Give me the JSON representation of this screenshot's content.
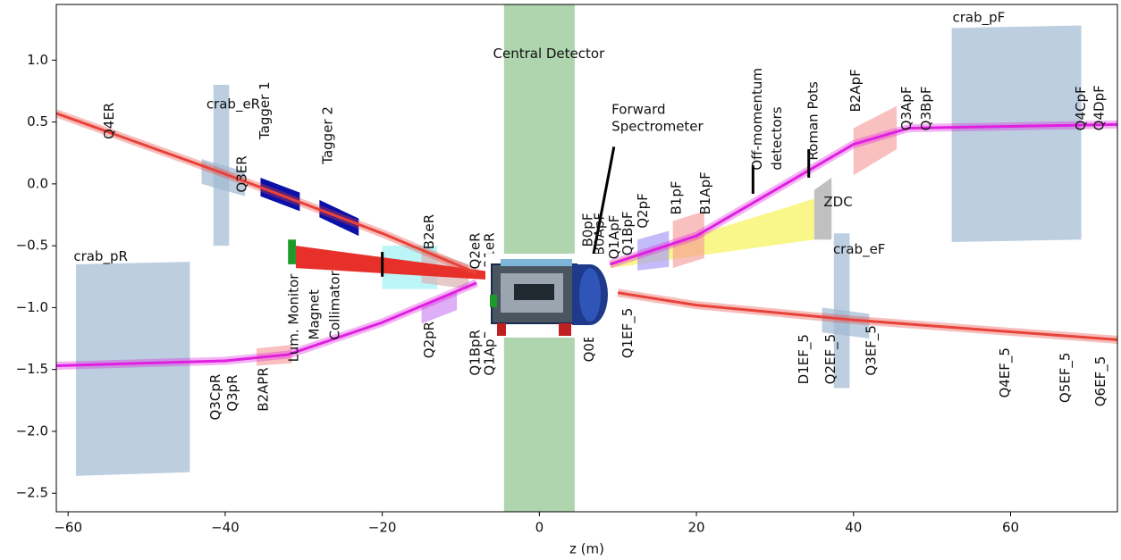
{
  "chart_data": {
    "type": "layout",
    "x_label": "z (m)",
    "xlim": [
      -61.5,
      73.6
    ],
    "ylim": [
      -2.65,
      1.45
    ],
    "xticks": [
      {
        "value": -60,
        "label": "−60"
      },
      {
        "value": -40,
        "label": "−40"
      },
      {
        "value": -20,
        "label": "−20"
      },
      0,
      20,
      40,
      60
    ],
    "yticks": [
      {
        "value": 1,
        "label": "1.0"
      },
      0.5,
      {
        "value": 0,
        "label": "0.0"
      },
      {
        "value": -0.5,
        "label": "−0.5"
      },
      {
        "value": -1,
        "label": "−1.0"
      },
      {
        "value": -1.5,
        "label": "−1.5"
      },
      {
        "value": -2,
        "label": "−2.0"
      },
      {
        "value": -2.5,
        "label": "−2.5"
      }
    ],
    "shapes": [
      {
        "color": "rgba(120,185,120,0.6)",
        "x": [
          -4.5,
          4.5,
          4.5,
          -4.5
        ],
        "y": [
          1.45,
          1.45,
          -2.65,
          -2.65
        ]
      },
      {
        "color": "rgba(160,185,210,0.7)",
        "x": [
          -59,
          -44.5,
          -44.5,
          -59
        ],
        "y": [
          -0.65,
          -0.63,
          -2.33,
          -2.36
        ]
      },
      {
        "color": "rgba(160,185,210,0.7)",
        "x": [
          52.5,
          69,
          69,
          52.5
        ],
        "y": [
          1.26,
          1.28,
          -0.45,
          -0.47
        ]
      },
      {
        "color": "rgba(160,185,210,0.7)",
        "x": [
          -41.5,
          -39.5,
          -39.5,
          -41.5
        ],
        "y": [
          0.8,
          0.8,
          -0.5,
          -0.5
        ]
      },
      {
        "color": "rgba(160,185,210,0.7)",
        "x": [
          -43,
          -37.5,
          -37.5,
          -43
        ],
        "y": [
          0.2,
          0.1,
          -0.1,
          0
        ]
      },
      {
        "color": "rgba(160,185,210,0.7)",
        "x": [
          37.5,
          39.5,
          39.5,
          37.5
        ],
        "y": [
          -0.4,
          -0.4,
          -1.65,
          -1.65
        ]
      },
      {
        "color": "rgba(160,185,210,0.7)",
        "x": [
          36,
          42,
          42,
          36
        ],
        "y": [
          -1.0,
          -1.05,
          -1.25,
          -1.2
        ]
      },
      {
        "color": "rgba(150,150,150,0.6)",
        "x": [
          35,
          37.2,
          37.2,
          35
        ],
        "y": [
          -0.05,
          0.05,
          -0.45,
          -0.45
        ]
      },
      {
        "color": "rgba(245,240,60,0.6)",
        "x": [
          9,
          35,
          35,
          9
        ],
        "y": [
          -0.63,
          -0.12,
          -0.45,
          -0.68
        ]
      },
      {
        "color": "rgba(120,235,240,0.5)",
        "x": [
          -20,
          -13,
          -13,
          -20
        ],
        "y": [
          -0.5,
          -0.5,
          -0.85,
          -0.85
        ]
      },
      {
        "color": "rgba(220,180,180,0.7)",
        "x": [
          -15,
          -9,
          -9,
          -15
        ],
        "y": [
          -0.52,
          -0.65,
          -0.85,
          -0.8
        ]
      },
      {
        "color": "#0a10a8",
        "x": [
          -35.5,
          -30.5,
          -30.5,
          -35.5
        ],
        "y": [
          0.05,
          -0.07,
          -0.22,
          -0.1
        ]
      },
      {
        "color": "#0a10a8",
        "x": [
          -28,
          -23,
          -23,
          -28
        ],
        "y": [
          -0.13,
          -0.28,
          -0.42,
          -0.27
        ]
      },
      {
        "color": "#1e9a2a",
        "x": [
          -32,
          -31,
          -31,
          -32
        ],
        "y": [
          -0.45,
          -0.45,
          -0.65,
          -0.65
        ]
      },
      {
        "color": "#e8302a",
        "x": [
          -31,
          -5,
          -5,
          -31
        ],
        "y": [
          -0.5,
          -0.72,
          -0.78,
          -0.68
        ]
      },
      {
        "color": "rgba(245,150,150,0.6)",
        "x": [
          40,
          45.5,
          45.5,
          40
        ],
        "y": [
          0.45,
          0.63,
          0.28,
          0.07
        ]
      },
      {
        "color": "rgba(245,150,150,0.6)",
        "x": [
          17,
          21,
          21,
          17
        ],
        "y": [
          -0.3,
          -0.22,
          -0.6,
          -0.68
        ]
      },
      {
        "color": "rgba(170,160,245,0.7)",
        "x": [
          12.5,
          16.5,
          16.5,
          12.5
        ],
        "y": [
          -0.45,
          -0.38,
          -0.67,
          -0.7
        ]
      },
      {
        "color": "rgba(200,120,240,0.6)",
        "x": [
          -15,
          -10.5,
          -10.5,
          -15
        ],
        "y": [
          -1.0,
          -0.87,
          -1.02,
          -1.13
        ]
      },
      {
        "color": "rgba(245,150,150,0.6)",
        "x": [
          -36,
          -31.5,
          -31.5,
          -36
        ],
        "y": [
          -1.33,
          -1.3,
          -1.45,
          -1.47
        ]
      }
    ],
    "lines": [
      {
        "color": "#e8433a",
        "x": [
          -61.5,
          -40,
          -20,
          -8
        ],
        "y": [
          0.57,
          0.08,
          -0.4,
          -0.72
        ]
      },
      {
        "color": "#e8433a",
        "x": [
          10,
          20,
          40,
          73.6
        ],
        "y": [
          -0.88,
          -0.98,
          -1.1,
          -1.26
        ]
      },
      {
        "color": "#e020e0",
        "x": [
          -61.5,
          -40,
          -32,
          -20,
          -8
        ],
        "y": [
          -1.47,
          -1.43,
          -1.38,
          -1.12,
          -0.8
        ]
      },
      {
        "color": "#e020e0",
        "x": [
          9,
          20,
          40,
          47,
          73.6
        ],
        "y": [
          -0.65,
          -0.42,
          0.32,
          0.45,
          0.48
        ]
      },
      {
        "color": "#000000",
        "x": [
          6.5,
          9.5
        ],
        "y": [
          -0.7,
          0.3
        ]
      },
      {
        "color": "#000000",
        "x": [
          27.2,
          27.2
        ],
        "y": [
          0.15,
          -0.08
        ]
      },
      {
        "color": "#000000",
        "x": [
          34.3,
          34.3
        ],
        "y": [
          0.28,
          0.05
        ]
      },
      {
        "color": "#000000",
        "x": [
          -20,
          -20
        ],
        "y": [
          -0.55,
          -0.75
        ]
      }
    ],
    "annotations": [
      {
        "text": "Central Detector",
        "x": 1.2,
        "y": 1.05,
        "rotation": 0,
        "anchor": "middle"
      },
      {
        "text": "Forward",
        "x": 9.2,
        "y": 0.6,
        "rotation": 0,
        "anchor": "start"
      },
      {
        "text": "Spectrometer",
        "x": 9.2,
        "y": 0.46,
        "rotation": 0,
        "anchor": "start"
      },
      {
        "text": "ZDC",
        "x": 36.2,
        "y": -0.15,
        "rotation": 0,
        "anchor": "start"
      },
      {
        "text": "crab_eR",
        "x": -42.4,
        "y": 0.64,
        "rotation": 0,
        "anchor": "start"
      },
      {
        "text": "crab_pR",
        "x": -59.3,
        "y": -0.59,
        "rotation": 0,
        "anchor": "start"
      },
      {
        "text": "crab_pF",
        "x": 52.6,
        "y": 1.34,
        "rotation": 0,
        "anchor": "start"
      },
      {
        "text": "crab_eF",
        "x": 37.4,
        "y": -0.53,
        "rotation": 0,
        "anchor": "start"
      },
      {
        "text": "Q4ER",
        "x": -54.7,
        "y": 0.36,
        "rotation": 90,
        "anchor": "start"
      },
      {
        "text": "Q3ER",
        "x": -37.8,
        "y": -0.07,
        "rotation": 90,
        "anchor": "start"
      },
      {
        "text": "Tagger 1",
        "x": -34.9,
        "y": 0.36,
        "rotation": 90,
        "anchor": "start"
      },
      {
        "text": "Tagger 2",
        "x": -26.9,
        "y": 0.16,
        "rotation": 90,
        "anchor": "start"
      },
      {
        "text": "B2eR",
        "x": -14.0,
        "y": -0.53,
        "rotation": 90,
        "anchor": "start"
      },
      {
        "text": "Q2eR",
        "x": -8.1,
        "y": -0.69,
        "rotation": 90,
        "anchor": "start"
      },
      {
        "text": "Q1eR",
        "x": -6.3,
        "y": -0.69,
        "rotation": 90,
        "anchor": "start"
      },
      {
        "text": "Lum. Monitor",
        "x": -31.2,
        "y": -1.44,
        "rotation": 90,
        "anchor": "start"
      },
      {
        "text": "Magnet",
        "x": -28.6,
        "y": -1.26,
        "rotation": 90,
        "anchor": "start"
      },
      {
        "text": "Collimator",
        "x": -26,
        "y": -1.26,
        "rotation": 90,
        "anchor": "start"
      },
      {
        "text": "Q2pR",
        "x": -14,
        "y": -1.41,
        "rotation": 90,
        "anchor": "start"
      },
      {
        "text": "Q1BpR",
        "x": -8.1,
        "y": -1.55,
        "rotation": 90,
        "anchor": "start"
      },
      {
        "text": "Q1ApR",
        "x": -6.3,
        "y": -1.55,
        "rotation": 90,
        "anchor": "start"
      },
      {
        "text": "Q3CpR",
        "x": -41.2,
        "y": -1.91,
        "rotation": 90,
        "anchor": "start"
      },
      {
        "text": "Q3pR",
        "x": -39,
        "y": -1.84,
        "rotation": 90,
        "anchor": "start"
      },
      {
        "text": "B2APR",
        "x": -35.1,
        "y": -1.84,
        "rotation": 90,
        "anchor": "start"
      },
      {
        "text": "Q0EF",
        "x": 6.4,
        "y": -1.44,
        "rotation": 90,
        "anchor": "start"
      },
      {
        "text": "B0pF",
        "x": 6.2,
        "y": -0.51,
        "rotation": 90,
        "anchor": "start"
      },
      {
        "text": "B0ApF",
        "x": 7.7,
        "y": -0.58,
        "rotation": 90,
        "anchor": "start"
      },
      {
        "text": "Q1ApF",
        "x": 9.6,
        "y": -0.61,
        "rotation": 90,
        "anchor": "start"
      },
      {
        "text": "Q1BpF",
        "x": 11.3,
        "y": -0.58,
        "rotation": 90,
        "anchor": "start"
      },
      {
        "text": "Q2pF",
        "x": 13.2,
        "y": -0.36,
        "rotation": 90,
        "anchor": "start"
      },
      {
        "text": "B1pF",
        "x": 17.5,
        "y": -0.25,
        "rotation": 90,
        "anchor": "start"
      },
      {
        "text": "B1ApF",
        "x": 21.2,
        "y": -0.25,
        "rotation": 90,
        "anchor": "start"
      },
      {
        "text": "Off-momentum",
        "x": 27.8,
        "y": 0.11,
        "rotation": 90,
        "anchor": "start"
      },
      {
        "text": "detectors",
        "x": 30.3,
        "y": 0.11,
        "rotation": 90,
        "anchor": "start"
      },
      {
        "text": "Roman Pots",
        "x": 34.9,
        "y": 0.19,
        "rotation": 90,
        "anchor": "start"
      },
      {
        "text": "B2ApF",
        "x": 40.3,
        "y": 0.58,
        "rotation": 90,
        "anchor": "start"
      },
      {
        "text": "Q3ApF",
        "x": 46.8,
        "y": 0.43,
        "rotation": 90,
        "anchor": "start"
      },
      {
        "text": "Q3BpF",
        "x": 49.3,
        "y": 0.43,
        "rotation": 90,
        "anchor": "start"
      },
      {
        "text": "Q4CpF",
        "x": 69,
        "y": 0.43,
        "rotation": 90,
        "anchor": "start"
      },
      {
        "text": "Q4DpF",
        "x": 71.3,
        "y": 0.43,
        "rotation": 90,
        "anchor": "start"
      },
      {
        "text": "Q1EF_5",
        "x": 11.3,
        "y": -1.41,
        "rotation": 90,
        "anchor": "start"
      },
      {
        "text": "D1EF_5",
        "x": 33.7,
        "y": -1.62,
        "rotation": 90,
        "anchor": "start"
      },
      {
        "text": "Q2EF_5",
        "x": 37.1,
        "y": -1.62,
        "rotation": 90,
        "anchor": "start"
      },
      {
        "text": "Q3EF_5",
        "x": 42.3,
        "y": -1.55,
        "rotation": 90,
        "anchor": "start"
      },
      {
        "text": "Q4EF_5",
        "x": 59.3,
        "y": -1.73,
        "rotation": 90,
        "anchor": "start"
      },
      {
        "text": "Q5EF_5",
        "x": 67,
        "y": -1.77,
        "rotation": 90,
        "anchor": "start"
      },
      {
        "text": "Q6EF_5",
        "x": 71.5,
        "y": -1.8,
        "rotation": 90,
        "anchor": "start"
      }
    ]
  }
}
